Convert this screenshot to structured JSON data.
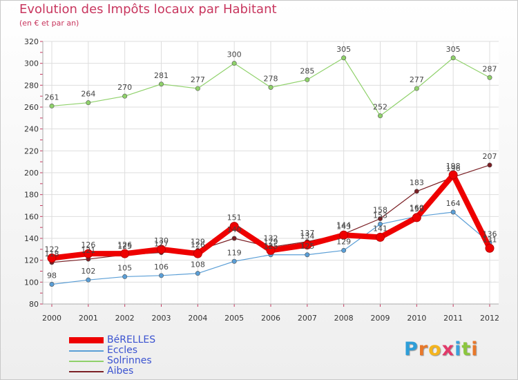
{
  "page": {
    "title": "Evolution des Impôts locaux par Habitant",
    "subtitle": "(en € et par an)"
  },
  "logo": {
    "letters": [
      "P",
      "r",
      "o",
      "x",
      "i",
      "t",
      "i"
    ],
    "colors": [
      "#2e9ed8",
      "#e8782a",
      "#f4b41e",
      "#e23a6a",
      "#3aa0dc",
      "#8cc63e",
      "#e8782a"
    ]
  },
  "chart_data": {
    "type": "line",
    "title": "Evolution des Impôts locaux par Habitant",
    "subtitle": "(en € et par an)",
    "xlabel": "",
    "ylabel": "",
    "x": [
      "2000",
      "2001",
      "2002",
      "2003",
      "2004",
      "2005",
      "2006",
      "2007",
      "2008",
      "2009",
      "2010",
      "2011",
      "2012"
    ],
    "ylim": [
      80,
      320
    ],
    "yticks": [
      80,
      100,
      120,
      140,
      160,
      180,
      200,
      220,
      240,
      260,
      280,
      300,
      320
    ],
    "grid": true,
    "legend_position": "bottom-left",
    "series": [
      {
        "name": "BéRELLES",
        "color": "#ee0000",
        "values": [
          122,
          126,
          126,
          130,
          126,
          151,
          129,
          134,
          143,
          141,
          159,
          198,
          131
        ],
        "labels": [
          "122",
          "126",
          "126",
          "130",
          "126",
          "151",
          "129",
          "134",
          "143",
          "141",
          "159",
          "198",
          "131"
        ]
      },
      {
        "name": "Eccles",
        "color": "#5a9ed6",
        "values": [
          98,
          102,
          105,
          106,
          108,
          119,
          125,
          125,
          129,
          153,
          160,
          164,
          136
        ],
        "labels": [
          "98",
          "102",
          "105",
          "106",
          "108",
          "119",
          "125",
          "125",
          "129",
          "153",
          "160",
          "164",
          "136"
        ]
      },
      {
        "name": "Solrinnes",
        "color": "#8fd16a",
        "values": [
          261,
          264,
          270,
          281,
          277,
          300,
          278,
          285,
          305,
          252,
          277,
          305,
          287
        ],
        "labels": [
          "261",
          "264",
          "270",
          "281",
          "277",
          "300",
          "278",
          "285",
          "305",
          "252",
          "277",
          "305",
          "287"
        ]
      },
      {
        "name": "Aibes",
        "color": "#7a1f24",
        "values": [
          118,
          121,
          125,
          127,
          129,
          140,
          132,
          137,
          144,
          158,
          183,
          196,
          207
        ],
        "labels": [
          "118",
          "121",
          "125",
          "127",
          "129",
          "140",
          "132",
          "137",
          "144",
          "158",
          "183",
          "196",
          "207"
        ]
      }
    ]
  }
}
